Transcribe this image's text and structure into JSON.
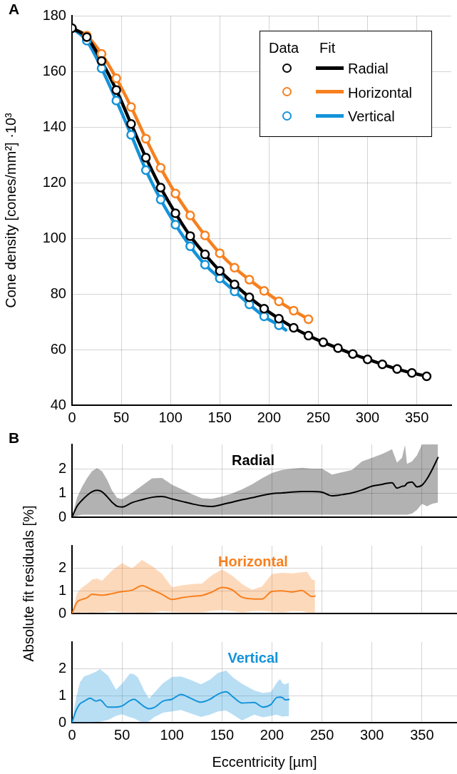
{
  "chart_data": [
    {
      "type": "line",
      "annotations": [
        "A",
        "Data",
        "Fit"
      ],
      "ylabel": "Cone density [cones/mm²] ·10³",
      "xlim": [
        0,
        385
      ],
      "xticks": [
        0,
        50,
        100,
        150,
        200,
        250,
        300,
        350
      ],
      "ylim": [
        40,
        180
      ],
      "yticks": [
        40,
        60,
        80,
        100,
        120,
        140,
        160,
        180
      ],
      "grid": true,
      "legend": "top right",
      "series": [
        {
          "type": "scatter",
          "marker": "circle",
          "color": "#000000",
          "x": [
            0,
            15,
            30,
            45,
            60,
            75,
            90,
            105,
            120,
            135,
            150,
            165,
            180,
            195,
            210,
            225,
            240,
            255,
            270,
            285,
            300,
            315,
            330,
            345,
            360
          ],
          "values": [
            175.5,
            172.3,
            163.7,
            153.3,
            141.1,
            129.0,
            118.2,
            109.0,
            100.8,
            94.2,
            88.3,
            83.4,
            78.8,
            74.7,
            71.1,
            67.8,
            65.0,
            62.6,
            60.5,
            58.4,
            56.5,
            54.7,
            53.0,
            51.6,
            50.4
          ]
        },
        {
          "type": "scatter",
          "marker": "circle",
          "color": "#f7801f",
          "x": [
            15,
            30,
            45,
            60,
            75,
            90,
            105,
            120,
            135,
            150,
            165,
            180,
            195,
            210,
            225,
            240
          ],
          "values": [
            172.8,
            166.3,
            157.5,
            147.2,
            135.8,
            125.3,
            116.1,
            108.2,
            101.0,
            94.6,
            89.4,
            85.1,
            81.1,
            77.3,
            74.0,
            70.9
          ]
        },
        {
          "type": "scatter",
          "marker": "circle",
          "color": "#1493d9",
          "x": [
            15,
            30,
            45,
            60,
            75,
            90,
            105,
            120,
            135,
            150,
            165,
            180,
            195,
            210
          ],
          "values": [
            171.0,
            161.1,
            149.5,
            137.2,
            124.5,
            113.9,
            104.9,
            97.1,
            90.5,
            85.6,
            80.9,
            76.2,
            71.9,
            68.7
          ]
        },
        {
          "type": "line",
          "name": "Radial",
          "color": "#000000",
          "x": [
            0,
            15,
            30,
            45,
            60,
            75,
            90,
            105,
            120,
            135,
            150,
            165,
            180,
            195,
            210,
            225,
            240,
            255,
            270,
            285,
            300,
            315,
            330,
            345,
            360
          ],
          "values": [
            175.5,
            172.3,
            163.7,
            153.3,
            141.1,
            129.0,
            118.2,
            109.0,
            100.8,
            94.2,
            88.3,
            83.4,
            78.8,
            74.7,
            71.1,
            67.8,
            65.0,
            62.6,
            60.5,
            58.4,
            56.5,
            54.7,
            53.0,
            51.6,
            50.4
          ]
        },
        {
          "type": "line",
          "name": "Horizontal",
          "color": "#f7801f",
          "x": [
            0,
            15,
            30,
            45,
            60,
            75,
            90,
            105,
            120,
            135,
            150,
            165,
            180,
            195,
            210,
            225,
            240
          ],
          "values": [
            175.5,
            172.8,
            166.3,
            157.5,
            147.2,
            135.8,
            125.3,
            116.1,
            108.2,
            101.0,
            94.6,
            89.4,
            85.1,
            81.1,
            77.3,
            74.0,
            70.9
          ]
        },
        {
          "type": "line",
          "name": "Vertical",
          "color": "#1493d9",
          "x": [
            0,
            15,
            30,
            45,
            60,
            75,
            90,
            105,
            120,
            135,
            150,
            165,
            180,
            195,
            210,
            217
          ],
          "values": [
            175.5,
            171.0,
            161.1,
            149.5,
            137.2,
            124.5,
            113.9,
            104.9,
            97.1,
            90.5,
            85.6,
            80.9,
            76.2,
            71.9,
            68.7,
            67.0
          ]
        }
      ]
    },
    {
      "type": "line",
      "title": "Radial",
      "annotations": [
        "B"
      ],
      "xlim": [
        0,
        385
      ],
      "xticks": [
        0,
        50,
        100,
        150,
        200,
        250,
        300,
        350
      ],
      "ylim": [
        0,
        3
      ],
      "yticks": [
        0,
        1,
        2
      ],
      "grid": true,
      "tick_labels": "y",
      "series": [
        {
          "color": "#000000",
          "x": [
            0,
            5,
            10,
            15,
            20,
            25,
            30,
            35,
            40,
            45,
            50,
            60,
            70,
            80,
            90,
            100,
            110,
            120,
            130,
            140,
            150,
            160,
            170,
            180,
            190,
            200,
            210,
            220,
            230,
            240,
            250,
            260,
            270,
            280,
            290,
            300,
            310,
            315,
            320,
            325,
            330,
            333,
            335,
            340,
            345,
            350,
            355,
            360,
            366
          ],
          "values": [
            0,
            0.45,
            0.7,
            0.9,
            1.05,
            1.11,
            1.05,
            0.85,
            0.62,
            0.45,
            0.42,
            0.6,
            0.72,
            0.82,
            0.85,
            0.75,
            0.65,
            0.55,
            0.47,
            0.44,
            0.52,
            0.62,
            0.72,
            0.8,
            0.9,
            0.97,
            1.0,
            1.04,
            1.06,
            1.06,
            1.03,
            0.88,
            0.93,
            1.0,
            1.12,
            1.28,
            1.35,
            1.4,
            1.42,
            1.2,
            1.27,
            1.3,
            1.4,
            1.45,
            1.25,
            1.32,
            1.58,
            1.95,
            2.46
          ],
          "lower": [
            0,
            0.05,
            0.1,
            0.1,
            0.1,
            0.1,
            0.1,
            0.1,
            0.1,
            0.1,
            0.1,
            0.1,
            0.1,
            0.1,
            0.1,
            0.1,
            0.1,
            0.1,
            0.1,
            0.1,
            0.1,
            0.1,
            0.1,
            0.1,
            0.1,
            0.1,
            0.1,
            0.1,
            0.1,
            0.1,
            0.1,
            0.1,
            0.1,
            0.1,
            0.1,
            0.1,
            0.1,
            0.1,
            0.1,
            0.1,
            0.1,
            0.1,
            0.1,
            0.15,
            0.3,
            0.55,
            0.45,
            0.55,
            0.6
          ],
          "upper": [
            0,
            0.8,
            1.25,
            1.6,
            1.9,
            2.02,
            1.9,
            1.55,
            1.1,
            0.8,
            0.74,
            1.0,
            1.3,
            1.6,
            1.62,
            1.34,
            1.15,
            0.95,
            0.78,
            0.76,
            0.85,
            0.98,
            1.15,
            1.35,
            1.6,
            1.82,
            1.95,
            2.0,
            2.04,
            2.0,
            2.0,
            1.76,
            1.85,
            1.95,
            2.3,
            2.45,
            2.6,
            2.7,
            2.8,
            2.25,
            2.45,
            2.98,
            2.2,
            2.3,
            2.55,
            3,
            3,
            3,
            3
          ]
        }
      ]
    },
    {
      "type": "line",
      "title": "Horizontal",
      "ylabel": "Absolute fit residuals [%]",
      "xlim": [
        0,
        385
      ],
      "xticks": [
        0,
        50,
        100,
        150,
        200,
        250,
        300,
        350
      ],
      "ylim": [
        0,
        3
      ],
      "yticks": [
        0,
        1,
        2
      ],
      "grid": true,
      "tick_labels": "y",
      "series": [
        {
          "color": "#f7801f",
          "x": [
            0,
            5,
            10,
            15,
            20,
            25,
            30,
            40,
            50,
            60,
            70,
            80,
            90,
            100,
            110,
            120,
            130,
            140,
            150,
            160,
            170,
            180,
            190,
            200,
            210,
            220,
            230,
            235,
            240,
            243
          ],
          "values": [
            0,
            0.5,
            0.62,
            0.7,
            0.85,
            0.83,
            0.81,
            0.88,
            0.97,
            1.03,
            1.23,
            1.05,
            0.85,
            0.62,
            0.7,
            0.76,
            0.8,
            0.95,
            1.15,
            1.05,
            0.72,
            0.65,
            0.64,
            0.98,
            1.0,
            0.95,
            1.02,
            0.88,
            0.75,
            0.77
          ],
          "lower": [
            0,
            0.02,
            0.05,
            0.05,
            0.03,
            0.05,
            0.05,
            0.1,
            0.05,
            0.05,
            0.03,
            0.05,
            0.1,
            0.08,
            0.05,
            0.05,
            0.05,
            0.12,
            0.15,
            0.1,
            0.05,
            0.1,
            0.12,
            0.08,
            0.05,
            0.1,
            0.1,
            0.05,
            0.03,
            0.03
          ],
          "upper": [
            0,
            0.9,
            1.15,
            1.3,
            1.5,
            1.55,
            1.45,
            1.9,
            2.23,
            2.0,
            2.37,
            2.1,
            1.75,
            1.16,
            1.25,
            1.3,
            1.33,
            1.7,
            1.95,
            1.68,
            1.3,
            1.05,
            1.2,
            1.75,
            1.8,
            1.78,
            1.82,
            1.85,
            1.5,
            1.47
          ]
        }
      ]
    },
    {
      "type": "line",
      "title": "Vertical",
      "xlabel": "Eccentricity [µm]",
      "xlim": [
        0,
        385
      ],
      "xticks": [
        0,
        50,
        100,
        150,
        200,
        250,
        300,
        350
      ],
      "ylim": [
        0,
        3
      ],
      "yticks": [
        0,
        1,
        2
      ],
      "grid": true,
      "series": [
        {
          "color": "#1493d9",
          "x": [
            0,
            4,
            8,
            12,
            18,
            24,
            28,
            36,
            44,
            50,
            58,
            62,
            66,
            72,
            77,
            82,
            91,
            100,
            109,
            118,
            129,
            138,
            146,
            154,
            161,
            170,
            182,
            191,
            199,
            205,
            208,
            211,
            213,
            217
          ],
          "values": [
            0,
            0.45,
            0.7,
            0.79,
            0.91,
            0.8,
            0.84,
            0.58,
            0.58,
            0.62,
            0.82,
            0.87,
            0.78,
            0.6,
            0.52,
            0.56,
            0.8,
            0.87,
            1.05,
            0.92,
            0.76,
            0.87,
            1.06,
            1.15,
            0.96,
            0.73,
            0.75,
            0.58,
            0.68,
            0.94,
            0.95,
            0.92,
            0.85,
            0.86
          ],
          "lower": [
            0,
            0,
            0,
            0,
            0,
            0.02,
            0.03,
            0.1,
            0.25,
            0.31,
            0.2,
            0.16,
            0.08,
            0,
            0.05,
            0.2,
            0.37,
            0.42,
            0.47,
            0.35,
            0.21,
            0.3,
            0.42,
            0.45,
            0.3,
            0.08,
            0.3,
            0.2,
            0.25,
            0.3,
            0.25,
            0.22,
            0.24,
            0.24
          ],
          "upper": [
            0,
            0.9,
            1.5,
            1.72,
            1.8,
            1.9,
            1.99,
            1.75,
            1.23,
            1.45,
            1.83,
            1.8,
            1.68,
            1.2,
            0.89,
            1.1,
            1.47,
            1.7,
            1.72,
            1.6,
            1.43,
            1.6,
            1.85,
            1.94,
            1.68,
            1.45,
            1.2,
            1.1,
            1.15,
            1.5,
            1.62,
            1.45,
            1.43,
            1.49
          ]
        }
      ]
    }
  ]
}
